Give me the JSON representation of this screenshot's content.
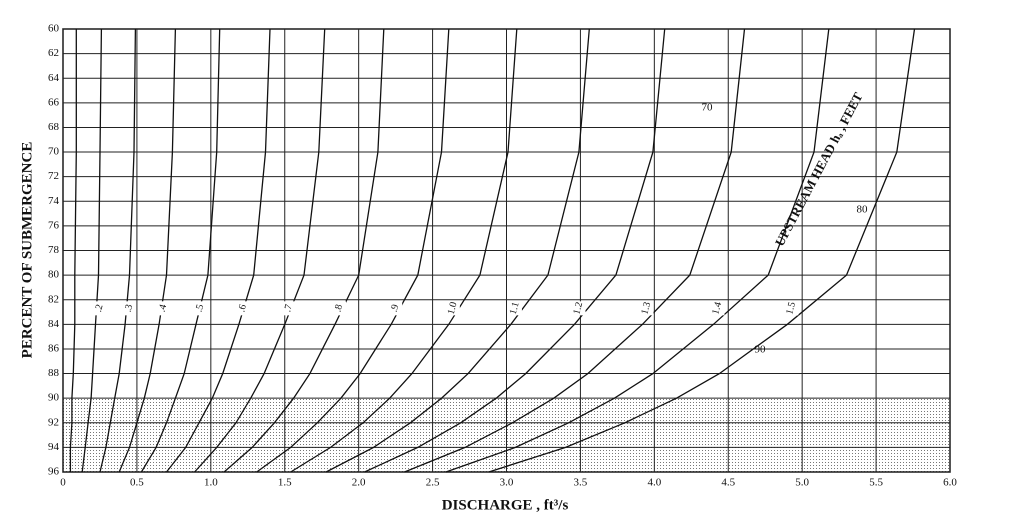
{
  "chart_data": {
    "type": "line",
    "xlabel": "DISCHARGE , ft³/s",
    "ylabel": "PERCENT OF SUBMERGENCE",
    "annotation": "UPSTREAM HEAD hₐ , FEET",
    "transition_labels": [
      "70",
      "80",
      "90"
    ],
    "xlim": [
      0,
      6
    ],
    "xticks": [
      0,
      0.5,
      {
        "value": 1,
        "label": "1.0"
      },
      1.5,
      {
        "value": 2,
        "label": "2.0"
      },
      2.5,
      {
        "value": 3,
        "label": "3.0"
      },
      3.5,
      {
        "value": 4,
        "label": "4.0"
      },
      4.5,
      {
        "value": 5,
        "label": "5.0"
      },
      5.5,
      {
        "value": 6,
        "label": "6.0"
      }
    ],
    "ylim": [
      96,
      60
    ],
    "yticks": [
      60,
      62,
      64,
      66,
      68,
      70,
      72,
      74,
      76,
      78,
      80,
      82,
      84,
      86,
      88,
      90,
      92,
      94,
      96
    ],
    "grid": true,
    "shade_from": 90,
    "color": "#111111",
    "y": [
      60,
      70,
      80,
      84,
      88,
      90,
      92,
      94,
      96
    ],
    "series": [
      {
        "name": null,
        "values": [
          0.09,
          0.09,
          0.08,
          0.08,
          0.07,
          0.06,
          0.06,
          0.05,
          0.05
        ]
      },
      {
        "name": ".2",
        "values": [
          0.26,
          0.25,
          0.24,
          0.22,
          0.2,
          0.19,
          0.17,
          0.15,
          0.13
        ]
      },
      {
        "name": ".3",
        "values": [
          0.49,
          0.48,
          0.45,
          0.42,
          0.38,
          0.35,
          0.32,
          0.29,
          0.25
        ]
      },
      {
        "name": ".4",
        "values": [
          0.76,
          0.74,
          0.7,
          0.65,
          0.59,
          0.55,
          0.5,
          0.45,
          0.38
        ]
      },
      {
        "name": ".5",
        "values": [
          1.06,
          1.04,
          0.98,
          0.9,
          0.82,
          0.76,
          0.7,
          0.63,
          0.53
        ]
      },
      {
        "name": ".6",
        "values": [
          1.4,
          1.37,
          1.29,
          1.19,
          1.08,
          1.01,
          0.92,
          0.83,
          0.7
        ]
      },
      {
        "name": ".7",
        "values": [
          1.77,
          1.73,
          1.63,
          1.5,
          1.36,
          1.27,
          1.17,
          1.04,
          0.89
        ]
      },
      {
        "name": ".8",
        "values": [
          2.17,
          2.13,
          2.0,
          1.84,
          1.67,
          1.56,
          1.43,
          1.28,
          1.09
        ]
      },
      {
        "name": ".9",
        "values": [
          2.61,
          2.56,
          2.4,
          2.22,
          2.01,
          1.88,
          1.72,
          1.54,
          1.31
        ]
      },
      {
        "name": "1.0",
        "values": [
          3.07,
          3.01,
          2.82,
          2.61,
          2.36,
          2.21,
          2.03,
          1.81,
          1.54
        ]
      },
      {
        "name": "1.1",
        "values": [
          3.56,
          3.49,
          3.28,
          3.03,
          2.74,
          2.56,
          2.35,
          2.1,
          1.78
        ]
      },
      {
        "name": "1.2",
        "values": [
          4.07,
          3.99,
          3.74,
          3.46,
          3.13,
          2.93,
          2.69,
          2.4,
          2.04
        ]
      },
      {
        "name": "1.3",
        "values": [
          4.61,
          4.52,
          4.24,
          3.92,
          3.55,
          3.32,
          3.04,
          2.72,
          2.31
        ]
      },
      {
        "name": "1.4",
        "values": [
          5.18,
          5.08,
          4.77,
          4.4,
          3.99,
          3.73,
          3.42,
          3.06,
          2.59
        ]
      },
      {
        "name": "1.5",
        "values": [
          5.76,
          5.64,
          5.3,
          4.9,
          4.44,
          4.15,
          3.8,
          3.4,
          2.88
        ]
      }
    ]
  }
}
